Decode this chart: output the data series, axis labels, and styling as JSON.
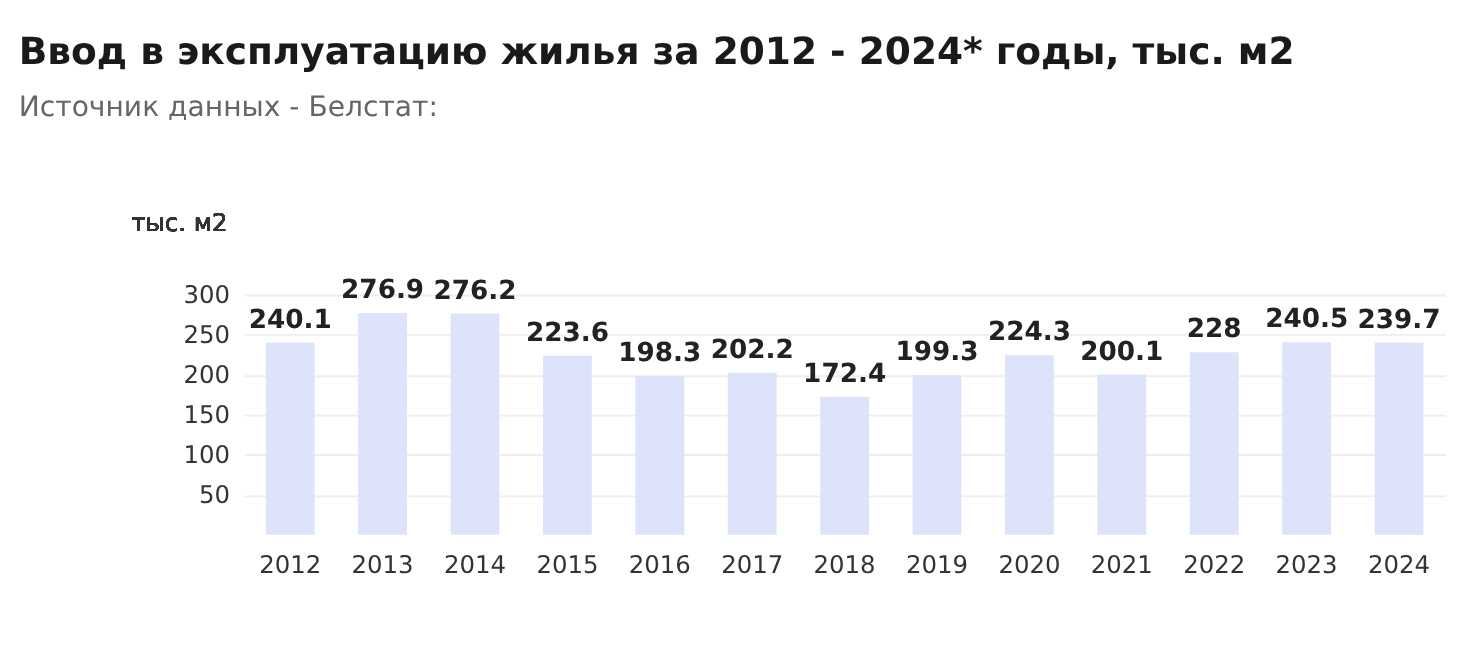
{
  "chart_data": {
    "type": "bar",
    "title": "Ввод в эксплуатацию жилья за 2012 - 2024* годы, тыс. м2",
    "subtitle": "Источник данных - Белстат:",
    "ylabel": "тыс. м2",
    "categories": [
      "2012",
      "2013",
      "2014",
      "2015",
      "2016",
      "2017",
      "2018",
      "2019",
      "2020",
      "2021",
      "2022",
      "2023",
      "2024"
    ],
    "values": [
      240.1,
      276.9,
      276.2,
      223.6,
      198.3,
      202.2,
      172.4,
      199.3,
      224.3,
      200.1,
      228,
      240.5,
      239.7
    ],
    "color": "#dde3fa",
    "ylim": [
      0,
      300
    ],
    "yticks": [
      50,
      100,
      150,
      200,
      250,
      300
    ],
    "grid": "y",
    "data_labels": true
  }
}
